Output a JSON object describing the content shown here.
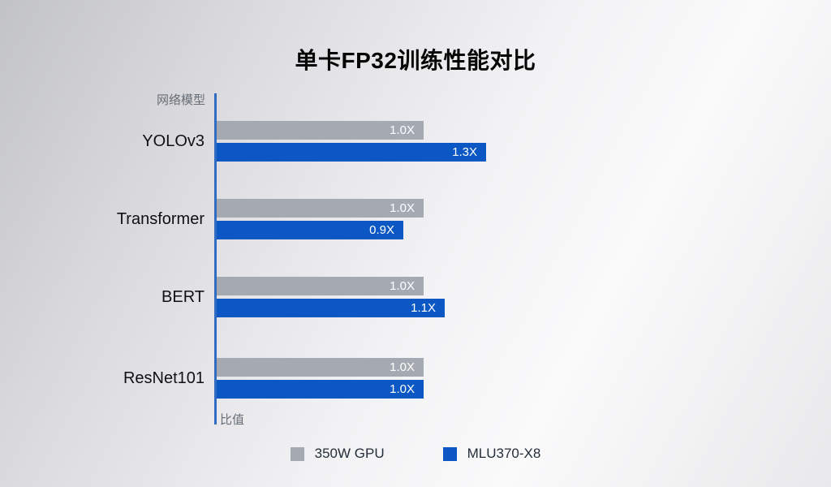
{
  "chart_data": {
    "type": "bar",
    "orientation": "horizontal",
    "title": "单卡FP32训练性能对比",
    "categories": [
      "YOLOv3",
      "Transformer",
      "BERT",
      "ResNet101"
    ],
    "series": [
      {
        "name": "350W GPU",
        "color": "#a5aab2",
        "values": [
          1.0,
          1.0,
          1.0,
          1.0
        ],
        "labels": [
          "1.0X",
          "1.0X",
          "1.0X",
          "1.0X"
        ]
      },
      {
        "name": "MLU370-X8",
        "color": "#0b58c5",
        "values": [
          1.3,
          0.9,
          1.1,
          1.0
        ],
        "labels": [
          "1.3X",
          "0.9X",
          "1.1X",
          "1.0X"
        ]
      }
    ],
    "xlabel": "比值",
    "ylabel": "网络模型",
    "xlim": [
      0,
      1.45
    ],
    "grid": false,
    "legend_position": "bottom",
    "axis_color": "#2f6cc2",
    "value_label_color": "#ffffff",
    "title_color": "#060607"
  }
}
